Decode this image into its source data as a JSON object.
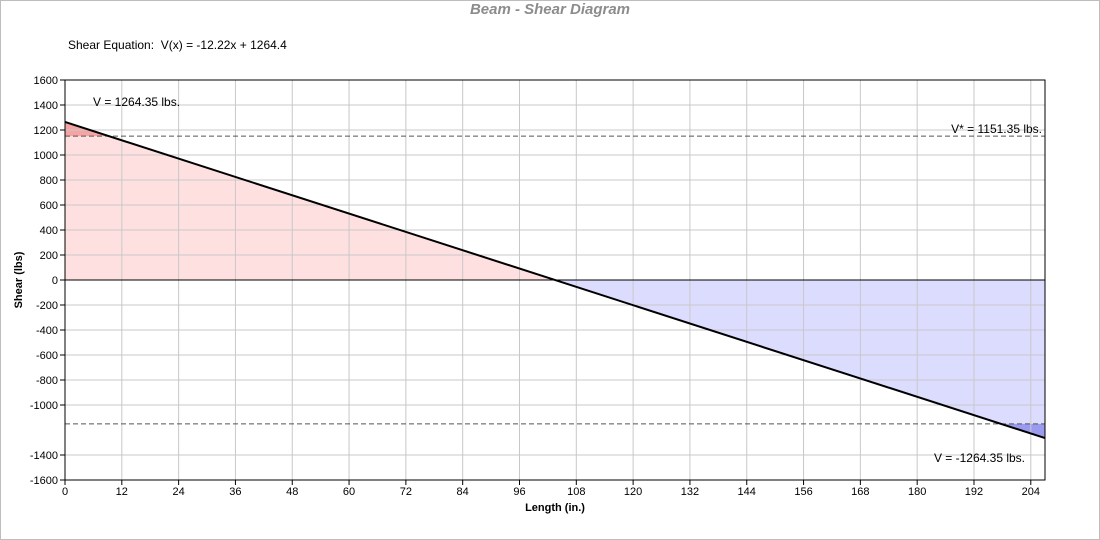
{
  "chart_data": {
    "type": "area",
    "title": "Beam - Shear Diagram",
    "equation_label": "Shear Equation:",
    "equation": "V(x) = -12.22x + 1264.4",
    "xlabel": "Length (in.)",
    "ylabel": "Shear (lbs)",
    "xlim": [
      0,
      207
    ],
    "ylim": [
      -1600,
      1600
    ],
    "x_ticks": [
      0,
      12,
      24,
      36,
      48,
      60,
      72,
      84,
      96,
      108,
      120,
      132,
      144,
      156,
      168,
      180,
      192,
      204
    ],
    "y_ticks": [
      1600,
      1400,
      1200,
      1000,
      800,
      600,
      400,
      200,
      0,
      -200,
      -400,
      -600,
      -800,
      -1000,
      -1400,
      -1600
    ],
    "grid": true,
    "series": [
      {
        "x": [
          0,
          207
        ],
        "values": [
          1264.35,
          -1264.35
        ]
      }
    ],
    "reference_lines": [
      {
        "y": 1151.35,
        "label": "V* = 1151.35 lbs."
      },
      {
        "y": -1151.35
      }
    ],
    "annotations": [
      {
        "text": "V = 1264.35 lbs.",
        "x": 0,
        "y": 1264.35
      },
      {
        "text": "V = -1264.35 lbs.",
        "x": 207,
        "y": -1264.35
      }
    ],
    "colors": {
      "positive_fill": "#ffe0e0",
      "negative_fill": "#dcdcff",
      "positive_exceed": "#f5a3a3",
      "negative_exceed": "#9a9aee",
      "line": "#000000",
      "grid": "#c8c8c8",
      "title": "#8c8c8c"
    }
  }
}
